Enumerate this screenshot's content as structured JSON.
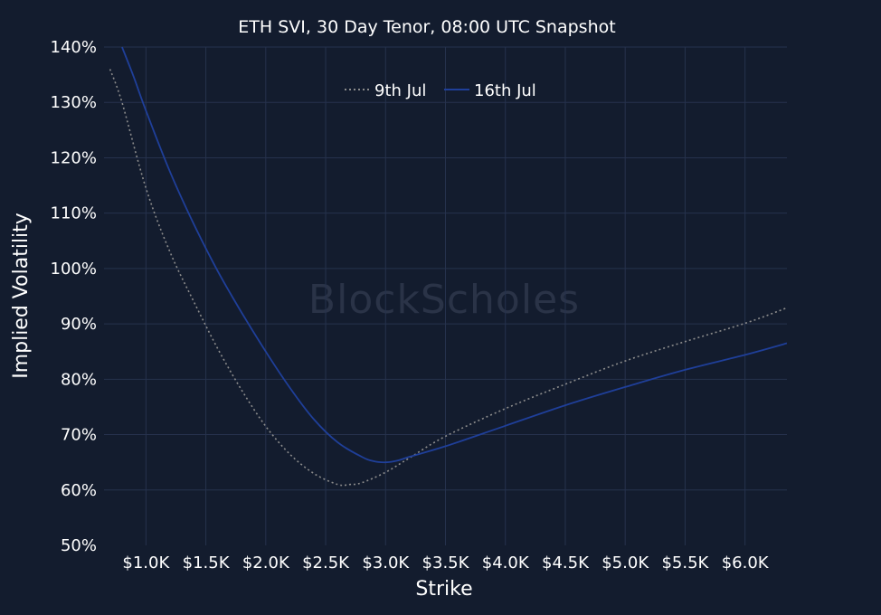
{
  "watermark": "BlockScholes",
  "chart_data": {
    "type": "line",
    "title": "ETH SVI, 30 Day Tenor, 08:00 UTC Snapshot",
    "xlabel": "Strike",
    "ylabel": "Implied Volatility",
    "xlim": [
      650,
      6350
    ],
    "ylim": [
      50,
      140
    ],
    "x_ticks": [
      1000,
      1500,
      2000,
      2500,
      3000,
      3500,
      4000,
      4500,
      5000,
      5500,
      6000
    ],
    "x_tick_labels": [
      "$1.0K",
      "$1.5K",
      "$2.0K",
      "$2.5K",
      "$3.0K",
      "$3.5K",
      "$4.0K",
      "$4.5K",
      "$5.0K",
      "$5.5K",
      "$6.0K"
    ],
    "y_ticks": [
      50,
      60,
      70,
      80,
      90,
      100,
      110,
      120,
      130,
      140
    ],
    "y_tick_labels": [
      "50%",
      "60%",
      "70%",
      "80%",
      "90%",
      "100%",
      "110%",
      "120%",
      "130%",
      "140%"
    ],
    "grid": true,
    "legend_position": "top-center",
    "series": [
      {
        "name": "9th Jul",
        "color": "#8c8c8c",
        "style": "dotted",
        "x": [
          700,
          800,
          1000,
          1200,
          1400,
          1600,
          1800,
          2000,
          2200,
          2400,
          2600,
          2700,
          2800,
          3000,
          3200,
          3500,
          4000,
          4500,
          5000,
          5500,
          6000,
          6350
        ],
        "y": [
          136,
          130,
          114.5,
          103,
          94,
          85.5,
          78,
          71.5,
          66.5,
          63,
          61,
          61,
          61.3,
          63.2,
          65.8,
          69.7,
          74.7,
          79.1,
          83.3,
          86.8,
          90.1,
          92.9
        ]
      },
      {
        "name": "16th Jul",
        "color": "#1f3f99",
        "style": "solid",
        "x": [
          800,
          900,
          1000,
          1200,
          1400,
          1600,
          1800,
          2000,
          2200,
          2400,
          2600,
          2800,
          2900,
          3000,
          3100,
          3200,
          3500,
          4000,
          4500,
          5000,
          5500,
          6000,
          6350
        ],
        "y": [
          140,
          134.5,
          128.5,
          117.5,
          108,
          99.5,
          92,
          85,
          78.5,
          72.8,
          68.6,
          66,
          65.2,
          65,
          65.3,
          66,
          67.9,
          71.6,
          75.3,
          78.6,
          81.7,
          84.4,
          86.5
        ]
      }
    ]
  }
}
